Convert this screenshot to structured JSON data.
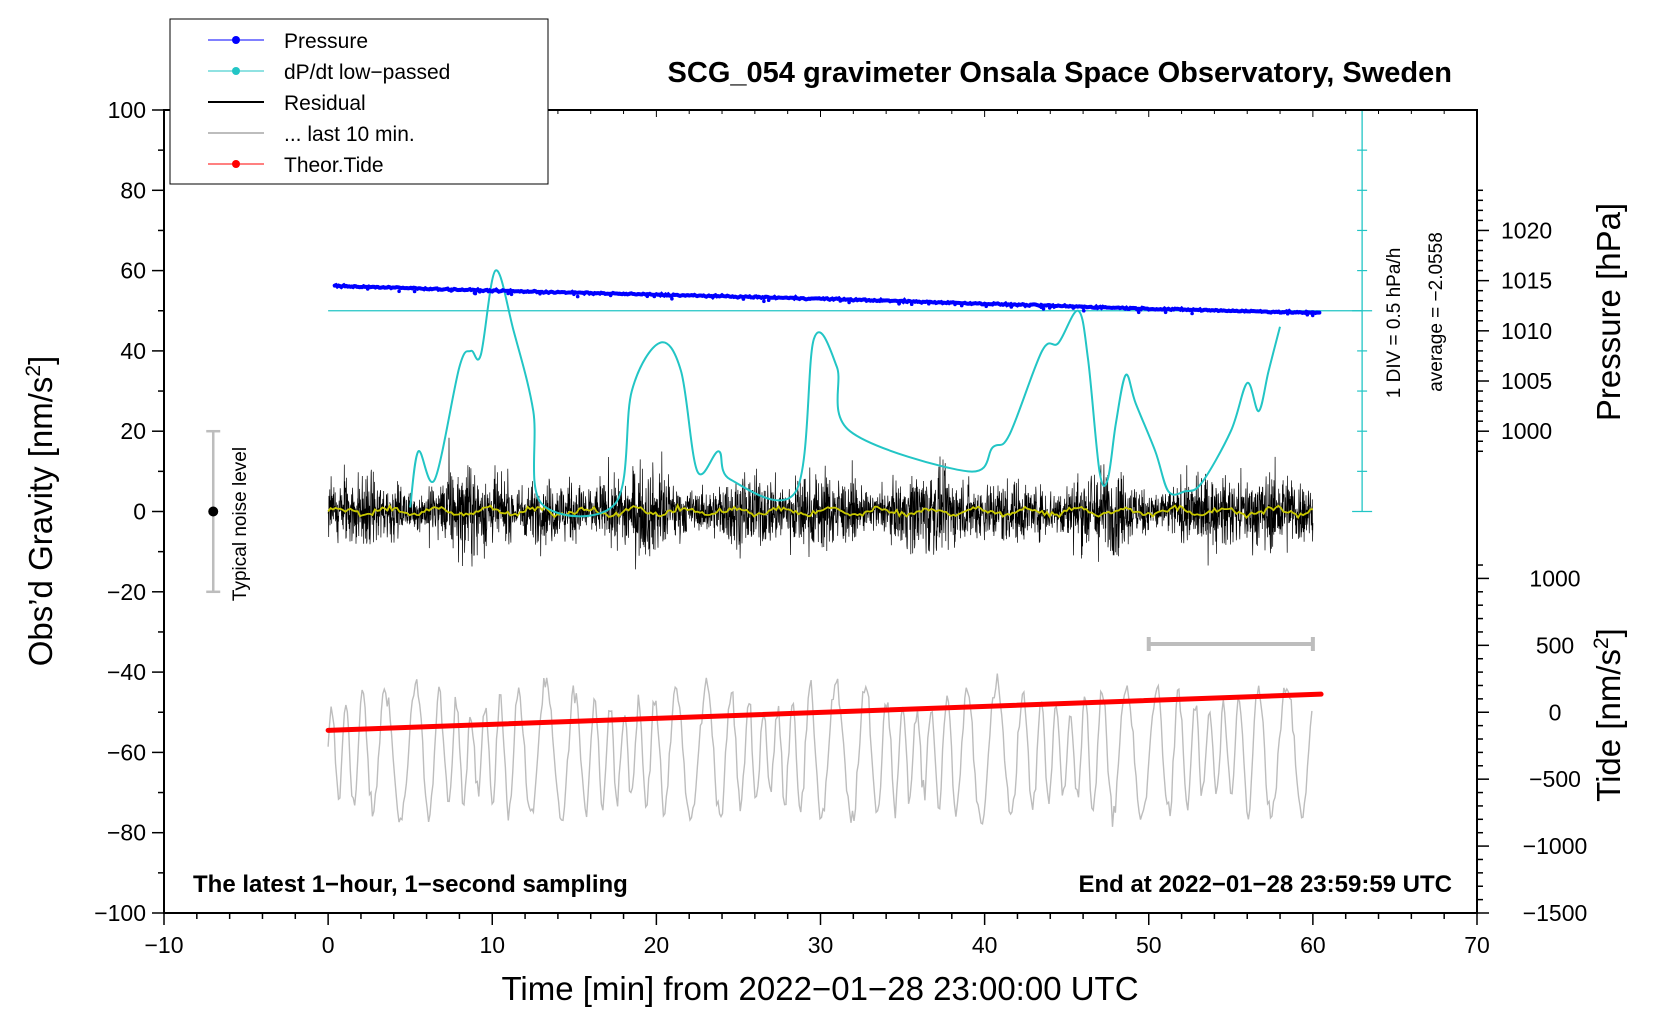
{
  "chart_data": {
    "type": "line",
    "title": "SCG_054 gravimeter Onsala Space Observatory, Sweden",
    "xlabel": "Time [min] from 2022−01−28 23:00:00 UTC",
    "ylabel": "Obs’d Gravity [nm/s²]",
    "xlim": [
      -10,
      70
    ],
    "ylim": [
      -100,
      100
    ],
    "xticks": [
      "−10",
      "0",
      "10",
      "20",
      "30",
      "40",
      "50",
      "60",
      "70"
    ],
    "yticks": [
      "100",
      "80",
      "60",
      "40",
      "20",
      "0",
      "−20",
      "−40",
      "−60",
      "−80",
      "−100"
    ],
    "pressure_axis": {
      "label": "Pressure [hPa]",
      "ticks": [
        "1020",
        "1015",
        "1010",
        "1005",
        "1000"
      ],
      "tick_values": [
        1020,
        1015,
        1010,
        1005,
        1000
      ],
      "scale": {
        "value_ref": 1000,
        "grav_ref": 20,
        "grav_per_unit": 2.5
      }
    },
    "tide_axis": {
      "label": "Tide [nm/s²]",
      "ticks": [
        "1000",
        "500",
        "0",
        "−500",
        "−1000",
        "−1500"
      ],
      "tick_values": [
        1000,
        500,
        0,
        -500,
        -1000,
        -1500
      ],
      "scale": {
        "value_ref": 0,
        "grav_ref": -50,
        "grav_per_unit": 0.033333
      }
    },
    "legend": [
      "Pressure",
      "dP/dt low−passed",
      "Residual",
      "... last 10 min.",
      "Theor.Tide"
    ],
    "legend_position": "top-left",
    "pressure_hpa": {
      "x": [
        0,
        10,
        20,
        30,
        40,
        50,
        60
      ],
      "values": [
        1014.5,
        1014.0,
        1013.6,
        1013.2,
        1012.7,
        1012.2,
        1011.8
      ]
    },
    "dpdt_lowpassed": {
      "x": [
        5,
        5.5,
        6.5,
        8,
        8.7,
        9.3,
        10.2,
        11.3,
        12.5,
        13,
        17.5,
        18.5,
        20.2,
        21.5,
        22.5,
        23.8,
        24.5,
        28.5,
        29.6,
        31,
        31.8,
        39,
        40.5,
        41.5,
        43.5,
        44.5,
        45.7,
        46.3,
        47,
        47.5,
        48,
        48.6,
        49.2,
        50.4,
        51.2,
        52.2,
        53.2,
        55,
        56,
        56.7,
        57.3,
        58
      ],
      "values": [
        1,
        15,
        8,
        36,
        40,
        39,
        60,
        45,
        25,
        2,
        2,
        30,
        42,
        35,
        10,
        15,
        8,
        5,
        43,
        36,
        20,
        10,
        16,
        19,
        40,
        42,
        50,
        38,
        10,
        8,
        22,
        34,
        27,
        15,
        5,
        5,
        7,
        20,
        32,
        25,
        35,
        46
      ]
    },
    "dpdt_reference": {
      "label": "1 DIV = 0.5 hPa/h",
      "average": "average = −2.0558",
      "level": 50
    },
    "residual": {
      "x_range": [
        0,
        60
      ],
      "amplitude": 14,
      "noise_level": 20
    },
    "residual_smoothed": {
      "x_range": [
        0,
        60
      ],
      "mean": 0
    },
    "last_10_min": {
      "x_range": [
        0,
        60
      ],
      "offset": -60,
      "amplitude": 14
    },
    "last_10_min_bar": {
      "x_range": [
        50,
        60
      ]
    },
    "theor_tide": {
      "x": [
        0,
        60.5
      ],
      "values": [
        -54.5,
        -45.5
      ]
    },
    "noise_marker": {
      "label": "Typical noise level",
      "x": -7,
      "center": 0,
      "half_range": 20
    },
    "annotations": {
      "left": "The latest 1−hour, 1−second sampling",
      "right": "End at 2022−01−28 23:59:59 UTC"
    },
    "colors": {
      "pressure": "#0000ff",
      "dpdt": "#22c5c5",
      "residual": "#000000",
      "smoothed": "#c8c800",
      "last10": "#bdbdbd",
      "tide": "#ff0000",
      "noise": "#bdbdbd"
    }
  }
}
